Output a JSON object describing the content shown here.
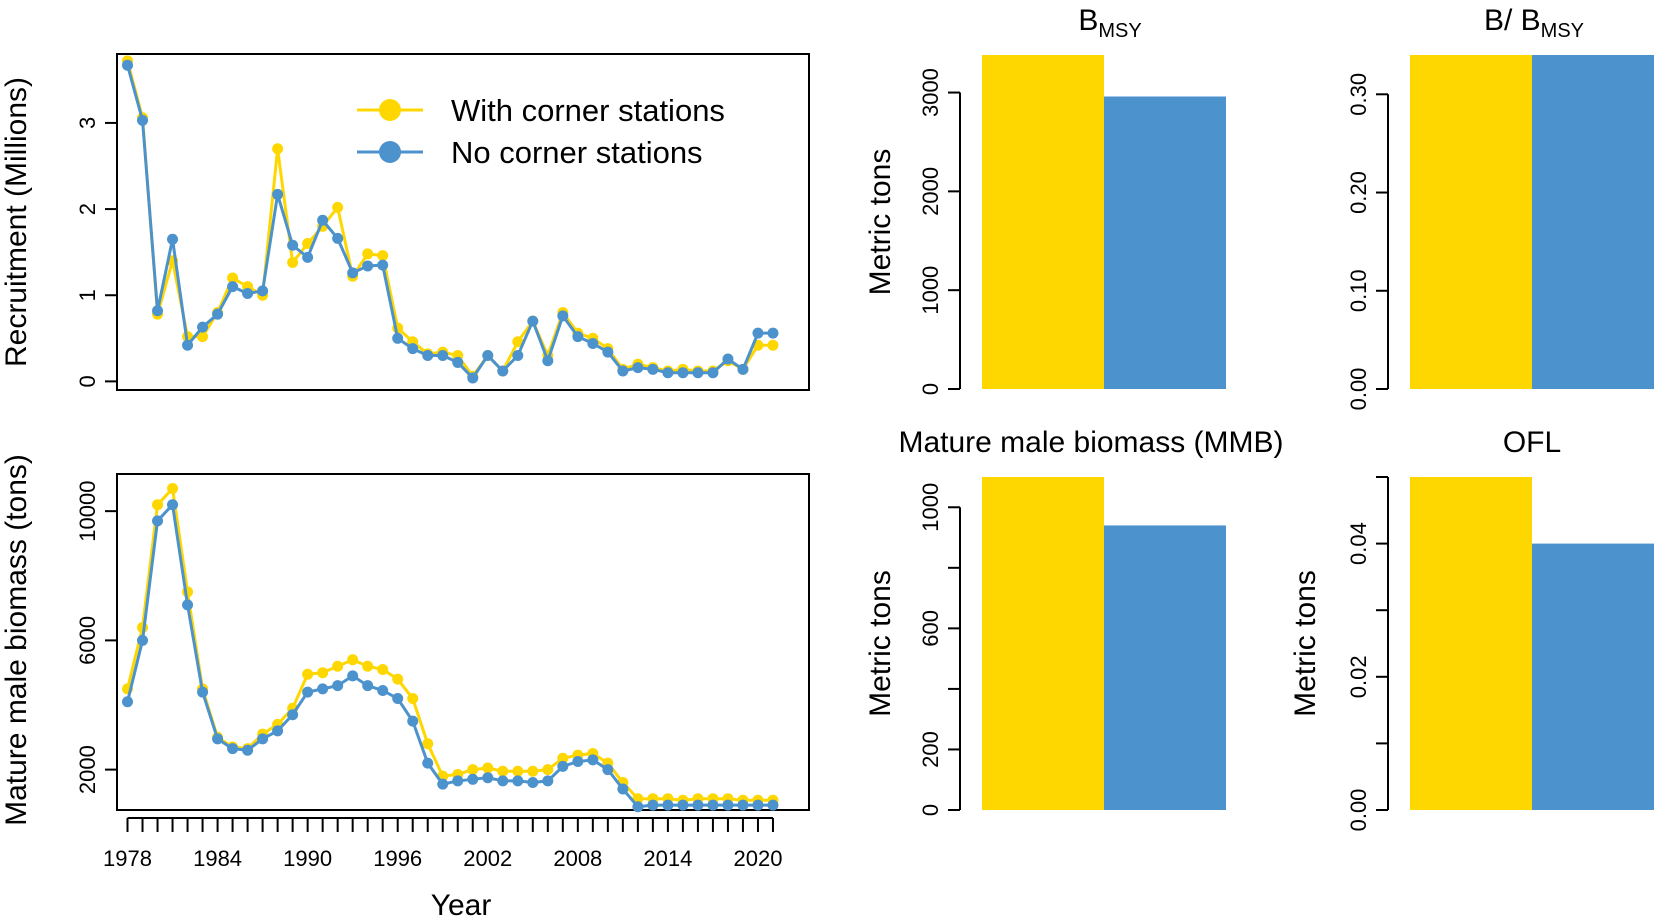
{
  "colors": {
    "with": "#FFD700",
    "no": "#4C92CC"
  },
  "legend": {
    "with_label": "With corner stations",
    "no_label": "No corner stations"
  },
  "chart_data": [
    {
      "id": "recruitment",
      "type": "line",
      "title": "",
      "xlabel": "",
      "ylabel": "Recruitment (Millions)",
      "x": [
        1978,
        1979,
        1980,
        1981,
        1982,
        1983,
        1984,
        1985,
        1986,
        1987,
        1988,
        1989,
        1990,
        1991,
        1992,
        1993,
        1994,
        1995,
        1996,
        1997,
        1998,
        1999,
        2000,
        2001,
        2002,
        2003,
        2004,
        2005,
        2006,
        2007,
        2008,
        2009,
        2010,
        2011,
        2012,
        2013,
        2014,
        2015,
        2016,
        2017,
        2018,
        2019,
        2020,
        2021
      ],
      "xlim": [
        1977.3,
        2023.4
      ],
      "ylim": [
        -0.1,
        3.8
      ],
      "yticks": [
        0,
        1,
        2,
        3
      ],
      "ytick_labels": [
        "0",
        "1",
        "2",
        "3"
      ],
      "series": [
        {
          "name": "With corner stations",
          "color_key": "with",
          "values": [
            3.72,
            3.06,
            0.78,
            1.4,
            0.52,
            0.52,
            0.8,
            1.2,
            1.1,
            1.0,
            2.7,
            1.38,
            1.6,
            1.8,
            2.02,
            1.22,
            1.48,
            1.46,
            0.62,
            0.46,
            0.32,
            0.34,
            0.3,
            0.06,
            0.3,
            0.12,
            0.46,
            0.7,
            0.3,
            0.8,
            0.56,
            0.5,
            0.38,
            0.14,
            0.2,
            0.16,
            0.12,
            0.14,
            0.12,
            0.12,
            0.24,
            0.14,
            0.42,
            0.42
          ]
        },
        {
          "name": "No corner stations",
          "color_key": "no",
          "values": [
            3.67,
            3.03,
            0.82,
            1.65,
            0.42,
            0.63,
            0.78,
            1.1,
            1.02,
            1.05,
            2.17,
            1.58,
            1.44,
            1.87,
            1.66,
            1.26,
            1.34,
            1.35,
            0.5,
            0.38,
            0.3,
            0.3,
            0.22,
            0.04,
            0.3,
            0.12,
            0.3,
            0.7,
            0.24,
            0.76,
            0.52,
            0.44,
            0.34,
            0.12,
            0.16,
            0.14,
            0.1,
            0.1,
            0.1,
            0.1,
            0.26,
            0.14,
            0.56,
            0.56
          ]
        }
      ]
    },
    {
      "id": "mmb",
      "type": "line",
      "title": "",
      "xlabel": "Year",
      "ylabel": "Mature male biomass (tons)",
      "x": [
        1978,
        1979,
        1980,
        1981,
        1982,
        1983,
        1984,
        1985,
        1986,
        1987,
        1988,
        1989,
        1990,
        1991,
        1992,
        1993,
        1994,
        1995,
        1996,
        1997,
        1998,
        1999,
        2000,
        2001,
        2002,
        2003,
        2004,
        2005,
        2006,
        2007,
        2008,
        2009,
        2010,
        2011,
        2012,
        2013,
        2014,
        2015,
        2016,
        2017,
        2018,
        2019,
        2020,
        2021
      ],
      "xlim": [
        1977.3,
        2023.4
      ],
      "ylim": [
        750,
        11150
      ],
      "yticks": [
        2000,
        6000,
        10000
      ],
      "ytick_labels": [
        "2000",
        "6000",
        "10000"
      ],
      "xticks": [
        1978,
        1979,
        1980,
        1981,
        1982,
        1983,
        1984,
        1985,
        1986,
        1987,
        1988,
        1989,
        1990,
        1991,
        1992,
        1993,
        1994,
        1995,
        1996,
        1997,
        1998,
        1999,
        2000,
        2001,
        2002,
        2003,
        2004,
        2005,
        2006,
        2007,
        2008,
        2009,
        2010,
        2011,
        2012,
        2013,
        2014,
        2015,
        2016,
        2017,
        2018,
        2019,
        2020,
        2021
      ],
      "xtick_labels": [
        "1978",
        "1984",
        "1990",
        "1996",
        "2002",
        "2008",
        "2014",
        "2020"
      ],
      "xtick_label_years": [
        1978,
        1984,
        1990,
        1996,
        2002,
        2008,
        2014,
        2020
      ],
      "series": [
        {
          "name": "With corner stations",
          "color_key": "with",
          "values": [
            4500,
            6400,
            10200,
            10700,
            7500,
            4500,
            3000,
            2700,
            2650,
            3100,
            3400,
            3900,
            4950,
            5000,
            5200,
            5400,
            5200,
            5100,
            4800,
            4200,
            2800,
            1800,
            1850,
            2000,
            2050,
            1950,
            1950,
            1950,
            2000,
            2350,
            2450,
            2500,
            2200,
            1600,
            1100,
            1100,
            1100,
            1050,
            1100,
            1100,
            1100,
            1050,
            1050,
            1050
          ]
        },
        {
          "name": "No corner stations",
          "color_key": "no",
          "values": [
            4100,
            6000,
            9700,
            10200,
            7100,
            4400,
            2950,
            2650,
            2600,
            2950,
            3200,
            3700,
            4400,
            4500,
            4600,
            4900,
            4600,
            4450,
            4200,
            3500,
            2200,
            1550,
            1650,
            1700,
            1750,
            1650,
            1650,
            1600,
            1650,
            2100,
            2250,
            2300,
            2000,
            1400,
            850,
            900,
            900,
            900,
            900,
            900,
            900,
            900,
            900,
            900
          ]
        }
      ]
    },
    {
      "id": "bmsy",
      "type": "bar",
      "title": "B",
      "title_sub": "MSY",
      "ylabel": "Metric tons",
      "ylim": [
        0,
        3380
      ],
      "yticks": [
        0,
        1000,
        2000,
        3000
      ],
      "ytick_labels": [
        "0",
        "1000",
        "2000",
        "3000"
      ],
      "categories": [
        "With corner stations",
        "No corner stations"
      ],
      "values": [
        3380,
        2960
      ]
    },
    {
      "id": "bbmsy",
      "type": "bar",
      "title": "B/ B",
      "title_sub": "MSY",
      "ylabel": "",
      "ylim": [
        0,
        0.34
      ],
      "yticks": [
        0,
        0.1,
        0.2,
        0.3
      ],
      "ytick_labels": [
        "0.00",
        "0.10",
        "0.20",
        "0.30"
      ],
      "categories": [
        "With corner stations",
        "No corner stations"
      ],
      "values": [
        0.34,
        0.34
      ]
    },
    {
      "id": "mmb_bar",
      "type": "bar",
      "title": "Mature male biomass (MMB)",
      "title_sub": "",
      "ylabel": "Metric tons",
      "ylim": [
        0,
        1100
      ],
      "yticks": [
        0,
        200,
        600,
        1000
      ],
      "ytick_labels": [
        "0",
        "200",
        "600",
        "1000"
      ],
      "ytick_minor": [
        0,
        200,
        400,
        600,
        800,
        1000
      ],
      "categories": [
        "With corner stations",
        "No corner stations"
      ],
      "values": [
        1100,
        940
      ]
    },
    {
      "id": "ofl",
      "type": "bar",
      "title": "OFL",
      "title_sub": "",
      "ylabel": "Metric tons",
      "ylim": [
        0,
        0.05
      ],
      "yticks": [
        0,
        0.02,
        0.04
      ],
      "ytick_labels": [
        "0.00",
        "0.02",
        "0.04"
      ],
      "ytick_minor": [
        0,
        0.01,
        0.02,
        0.03,
        0.04,
        0.05
      ],
      "categories": [
        "With corner stations",
        "No corner stations"
      ],
      "values": [
        0.05,
        0.04
      ]
    }
  ]
}
